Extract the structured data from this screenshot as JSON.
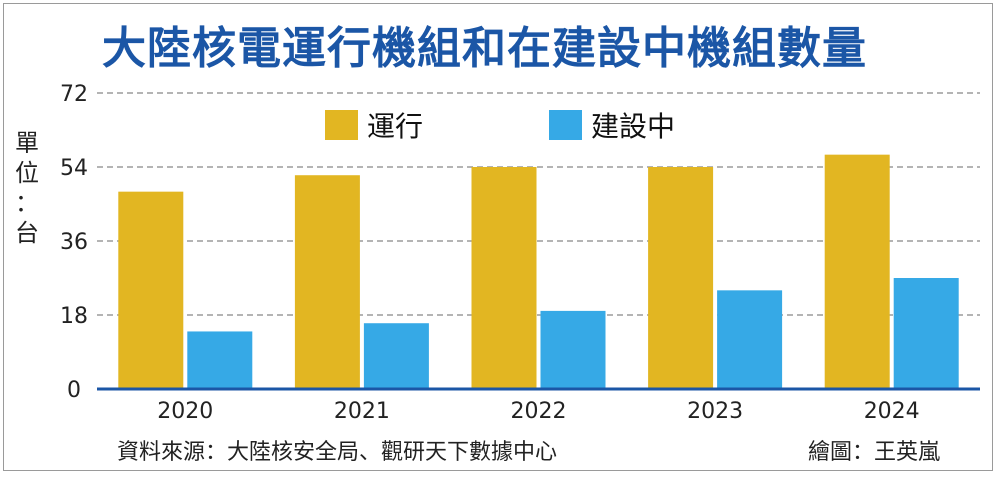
{
  "title": "大陸核電運行機組和在建設中機組數量",
  "unit_label": [
    "單",
    "位",
    "：",
    "台"
  ],
  "source": "資料來源：大陸核安全局、觀研天下數據中心",
  "credit": "繪圖：王英嵐",
  "chart_data": {
    "type": "bar",
    "categories": [
      "2020",
      "2021",
      "2022",
      "2023",
      "2024"
    ],
    "series": [
      {
        "name": "運行",
        "color": "#e2b622",
        "values": [
          48,
          52,
          54,
          54,
          57
        ]
      },
      {
        "name": "建設中",
        "color": "#36a9e6",
        "values": [
          14,
          16,
          19,
          24,
          27
        ]
      }
    ],
    "yticks": [
      "0",
      "18",
      "36",
      "54",
      "72"
    ],
    "ylim": [
      0,
      72
    ],
    "grid": true,
    "legend": "top"
  }
}
